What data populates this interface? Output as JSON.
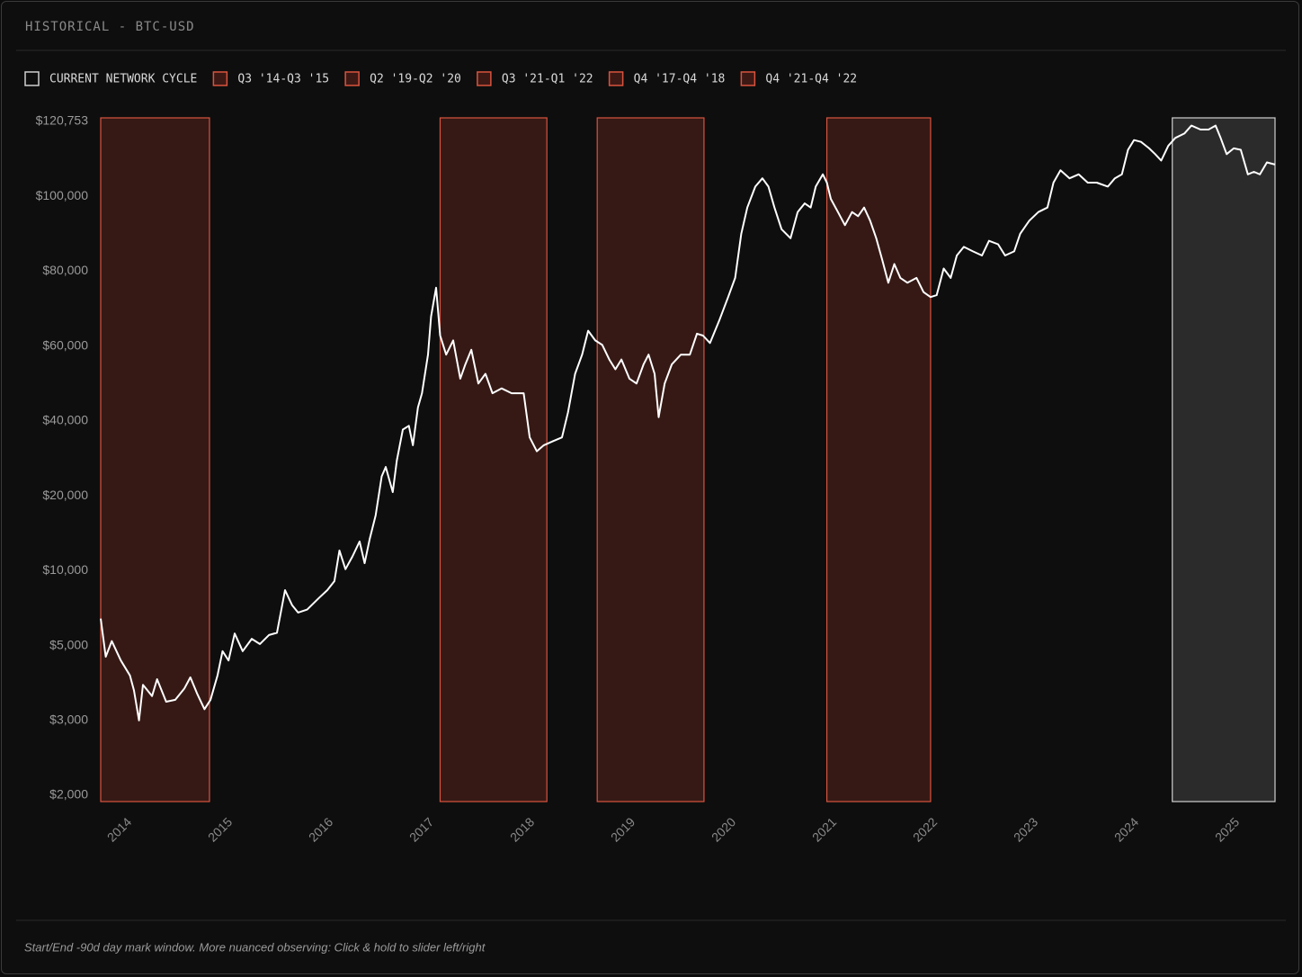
{
  "header": {
    "title": "HISTORICAL - BTC-USD"
  },
  "chart_data": {
    "type": "line",
    "legend": [
      "CURRENT NETWORK CYCLE",
      "Q3 '14-Q3 '15",
      "Q2 '19-Q2 '20",
      "Q3 '21-Q1 '22",
      "Q4 '17-Q4 '18",
      "Q4 '21-Q4 '22"
    ],
    "color": "#ffffff",
    "highlight_color": "#d9533f",
    "current_color": "#cfcfcf",
    "xlim": [
      2013.71,
      2025.37
    ],
    "xticks": [
      2014,
      2015,
      2016,
      2017,
      2018,
      2019,
      2020,
      2021,
      2022,
      2023,
      2024,
      2025
    ],
    "ylim": [
      2000,
      120753
    ],
    "yticks": [
      {
        "value": 2000,
        "label": "$2,000"
      },
      {
        "value": 3000,
        "label": "$3,000"
      },
      {
        "value": 5000,
        "label": "$5,000"
      },
      {
        "value": 10000,
        "label": "$10,000"
      },
      {
        "value": 20000,
        "label": "$20,000"
      },
      {
        "value": 40000,
        "label": "$40,000"
      },
      {
        "value": 60000,
        "label": "$60,000"
      },
      {
        "value": 80000,
        "label": "$80,000"
      },
      {
        "value": 100000,
        "label": "$100,000"
      },
      {
        "value": 120753,
        "label": "$120,753"
      }
    ],
    "highlight_windows": [
      {
        "start": 2013.71,
        "end": 2014.79
      },
      {
        "start": 2017.08,
        "end": 2018.14
      },
      {
        "start": 2018.64,
        "end": 2019.7
      },
      {
        "start": 2020.92,
        "end": 2021.95
      }
    ],
    "current_window": {
      "start": 2024.35,
      "end": 2025.37
    },
    "x": [
      2013.71,
      2013.76,
      2013.82,
      2013.91,
      2014.0,
      2014.04,
      2014.09,
      2014.13,
      2014.22,
      2014.27,
      2014.36,
      2014.45,
      2014.54,
      2014.6,
      2014.67,
      2014.74,
      2014.8,
      2014.87,
      2014.92,
      2014.98,
      2015.04,
      2015.12,
      2015.21,
      2015.29,
      2015.38,
      2015.46,
      2015.54,
      2015.61,
      2015.67,
      2015.76,
      2015.88,
      2015.96,
      2016.03,
      2016.08,
      2016.14,
      2016.21,
      2016.28,
      2016.33,
      2016.38,
      2016.44,
      2016.5,
      2016.54,
      2016.61,
      2016.65,
      2016.71,
      2016.77,
      2016.81,
      2016.86,
      2016.9,
      2016.96,
      2016.99,
      2017.04,
      2017.08,
      2017.14,
      2017.21,
      2017.28,
      2017.33,
      2017.39,
      2017.46,
      2017.53,
      2017.6,
      2017.69,
      2017.79,
      2017.91,
      2017.97,
      2018.04,
      2018.11,
      2018.2,
      2018.29,
      2018.35,
      2018.42,
      2018.49,
      2018.55,
      2018.62,
      2018.69,
      2018.76,
      2018.82,
      2018.88,
      2018.96,
      2019.03,
      2019.1,
      2019.15,
      2019.21,
      2019.25,
      2019.31,
      2019.38,
      2019.47,
      2019.56,
      2019.63,
      2019.69,
      2019.76,
      2019.85,
      2019.94,
      2020.01,
      2020.07,
      2020.13,
      2020.21,
      2020.28,
      2020.34,
      2020.4,
      2020.47,
      2020.56,
      2020.63,
      2020.7,
      2020.76,
      2020.81,
      2020.88,
      2020.92,
      2020.96,
      2021.03,
      2021.1,
      2021.17,
      2021.23,
      2021.29,
      2021.35,
      2021.41,
      2021.47,
      2021.53,
      2021.59,
      2021.65,
      2021.72,
      2021.81,
      2021.88,
      2021.95,
      2022.01,
      2022.08,
      2022.15,
      2022.21,
      2022.28,
      2022.37,
      2022.46,
      2022.53,
      2022.62,
      2022.69,
      2022.78,
      2022.84,
      2022.93,
      2023.02,
      2023.11,
      2023.17,
      2023.24,
      2023.33,
      2023.42,
      2023.51,
      2023.6,
      2023.71,
      2023.78,
      2023.85,
      2023.91,
      2023.97,
      2024.04,
      2024.12,
      2024.18,
      2024.24,
      2024.31,
      2024.38,
      2024.47,
      2024.54,
      2024.63,
      2024.71,
      2024.78,
      2024.83,
      2024.89,
      2024.96,
      2025.03,
      2025.1,
      2025.16,
      2025.22,
      2025.29,
      2025.37
    ],
    "values": [
      6800,
      4700,
      5300,
      4600,
      4200,
      3800,
      3000,
      3950,
      3650,
      4100,
      3500,
      3550,
      3850,
      4150,
      3700,
      3300,
      3550,
      4200,
      4850,
      4600,
      5800,
      4850,
      5450,
      5100,
      5700,
      5850,
      8700,
      7700,
      7200,
      7400,
      8200,
      8700,
      9300,
      12700,
      10200,
      11900,
      13900,
      11000,
      14200,
      17400,
      25200,
      27700,
      21000,
      29400,
      37700,
      38700,
      33500,
      43600,
      47400,
      57700,
      67900,
      75600,
      62800,
      57700,
      61500,
      51300,
      55100,
      59000,
      50000,
      52600,
      47400,
      48700,
      47400,
      47400,
      35600,
      31900,
      33500,
      34600,
      35600,
      42300,
      52600,
      57700,
      64100,
      61500,
      60300,
      56400,
      53800,
      56400,
      51300,
      50000,
      55100,
      57700,
      52600,
      41000,
      50000,
      55100,
      57700,
      57700,
      63300,
      62800,
      60800,
      66700,
      73100,
      78200,
      90000,
      97000,
      102700,
      105000,
      102700,
      97000,
      91200,
      88800,
      95800,
      98100,
      97000,
      102700,
      106100,
      103800,
      99300,
      95800,
      92300,
      95800,
      94700,
      97000,
      93500,
      88800,
      83000,
      76900,
      81900,
      78200,
      76900,
      78200,
      74400,
      73100,
      73600,
      80700,
      78200,
      84200,
      86500,
      85300,
      84200,
      88100,
      87200,
      84200,
      85300,
      90000,
      93500,
      95800,
      97000,
      103800,
      107200,
      105000,
      106100,
      103800,
      103800,
      102700,
      105000,
      106100,
      112900,
      115600,
      115100,
      113300,
      111700,
      109900,
      114000,
      116200,
      117400,
      119600,
      118500,
      118500,
      119600,
      116200,
      111700,
      113300,
      112900,
      106100,
      106800,
      106100,
      109400,
      108800
    ]
  },
  "footer": {
    "note": "Start/End -90d day mark window. More nuanced observing: Click & hold to slider left/right"
  }
}
